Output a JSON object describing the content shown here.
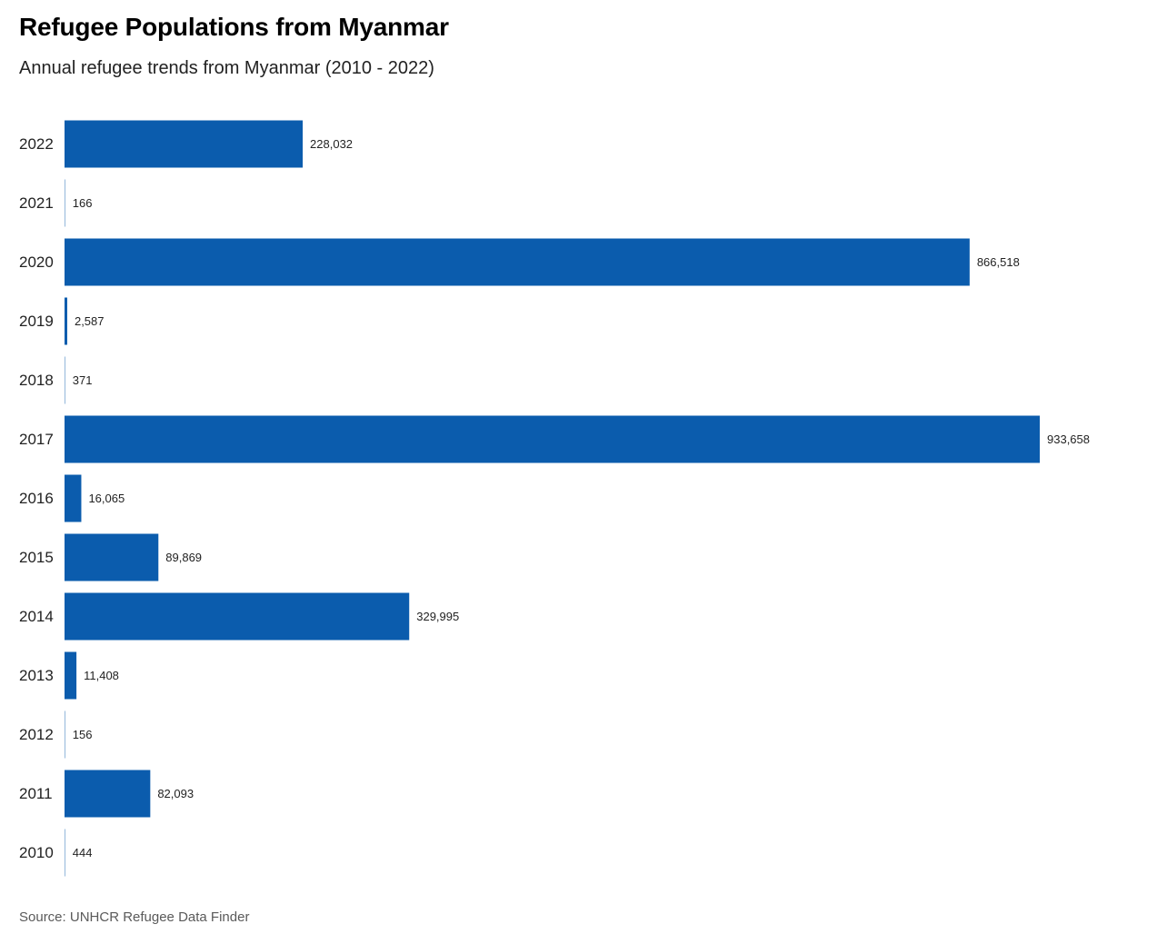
{
  "chart_data": {
    "type": "bar",
    "orientation": "horizontal",
    "title": "Refugee Populations from Myanmar",
    "subtitle": "Annual refugee trends from Myanmar (2010 - 2022)",
    "categories": [
      "2022",
      "2021",
      "2020",
      "2019",
      "2018",
      "2017",
      "2016",
      "2015",
      "2014",
      "2013",
      "2012",
      "2011",
      "2010"
    ],
    "values": [
      228032,
      166,
      866518,
      2587,
      371,
      933658,
      16065,
      89869,
      329995,
      11408,
      156,
      82093,
      444
    ],
    "value_labels": [
      "228,032",
      "166",
      "866,518",
      "2,587",
      "371",
      "933,658",
      "16,065",
      "89,869",
      "329,995",
      "11,408",
      "156",
      "82,093",
      "444"
    ],
    "xlim": [
      0,
      933658
    ],
    "bar_color": "#0b5cad",
    "grid": false,
    "legend": "none",
    "source": "Source: UNHCR Refugee Data Finder"
  }
}
